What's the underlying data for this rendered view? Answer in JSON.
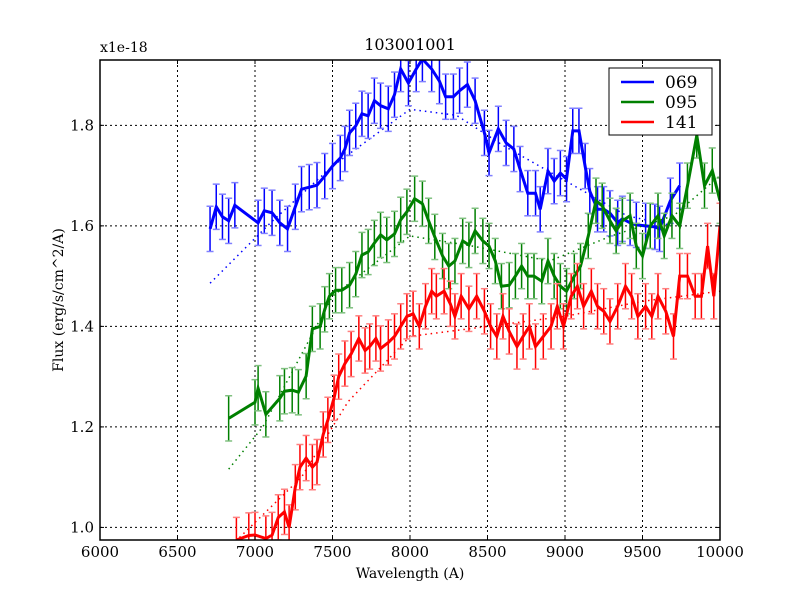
{
  "chart_data": {
    "type": "line",
    "title": "103001001",
    "xlabel": "Wavelength (A)",
    "ylabel": "Flux (erg/s/cm^2/A)",
    "y_offset_label": "x1e-18",
    "xlim": [
      6000,
      10000
    ],
    "ylim": [
      0.975,
      1.93
    ],
    "x_ticks": [
      "6000",
      "6500",
      "7000",
      "7500",
      "8000",
      "8500",
      "9000",
      "9500",
      "10000"
    ],
    "y_ticks": [
      "1.0",
      "1.2",
      "1.4",
      "1.6",
      "1.8"
    ],
    "grid": true,
    "legend_position": "upper right",
    "error_bars": true,
    "series": [
      {
        "name": "069",
        "color": "#0000ff",
        "x": [
          6710,
          6750,
          6790,
          6830,
          6870,
          7020,
          7060,
          7110,
          7160,
          7210,
          7260,
          7300,
          7350,
          7400,
          7450,
          7500,
          7550,
          7580,
          7610,
          7650,
          7690,
          7730,
          7770,
          7810,
          7860,
          7900,
          7940,
          7990,
          8040,
          8080,
          8140,
          8190,
          8230,
          8280,
          8320,
          8370,
          8420,
          8480,
          8510,
          8570,
          8620,
          8670,
          8710,
          8760,
          8810,
          8840,
          8890,
          8930,
          8970,
          9010,
          9050,
          9090,
          9130,
          9160,
          9210,
          9250,
          9290,
          9340,
          9370,
          9420,
          9460,
          9520,
          9580,
          9610,
          9680,
          9740
        ],
        "values": [
          1.594,
          1.638,
          1.618,
          1.61,
          1.641,
          1.606,
          1.63,
          1.626,
          1.606,
          1.594,
          1.638,
          1.673,
          1.677,
          1.681,
          1.699,
          1.719,
          1.735,
          1.753,
          1.785,
          1.799,
          1.823,
          1.819,
          1.849,
          1.839,
          1.833,
          1.861,
          1.912,
          1.884,
          1.912,
          1.932,
          1.912,
          1.888,
          1.857,
          1.857,
          1.869,
          1.881,
          1.849,
          1.785,
          1.745,
          1.793,
          1.765,
          1.753,
          1.713,
          1.665,
          1.665,
          1.633,
          1.709,
          1.689,
          1.705,
          1.693,
          1.789,
          1.789,
          1.719,
          1.669,
          1.633,
          1.633,
          1.625,
          1.606,
          1.614,
          1.606,
          1.602,
          1.6,
          1.598,
          1.594,
          1.65,
          1.68
        ],
        "model_trend": [
          [
            6710,
            1.486
          ],
          [
            7100,
            1.606
          ],
          [
            7500,
            1.719
          ],
          [
            8000,
            1.832
          ],
          [
            8300,
            1.82
          ],
          [
            8600,
            1.76
          ],
          [
            9000,
            1.69
          ],
          [
            9400,
            1.62
          ],
          [
            9700,
            1.6
          ]
        ]
      },
      {
        "name": "095",
        "color": "#008000",
        "x": [
          6830,
          7000,
          7020,
          7070,
          7160,
          7190,
          7240,
          7280,
          7330,
          7370,
          7420,
          7450,
          7480,
          7520,
          7560,
          7610,
          7650,
          7690,
          7730,
          7770,
          7810,
          7850,
          7900,
          7940,
          7980,
          8030,
          8080,
          8120,
          8160,
          8210,
          8250,
          8290,
          8340,
          8380,
          8420,
          8470,
          8510,
          8550,
          8590,
          8640,
          8680,
          8720,
          8760,
          8800,
          8850,
          8890,
          8930,
          8970,
          9010,
          9060,
          9100,
          9150,
          9200,
          9240,
          9290,
          9330,
          9370,
          9420,
          9460,
          9500,
          9550,
          9600,
          9640,
          9690,
          9740,
          9790,
          9850,
          9900,
          9950,
          10000
        ],
        "values": [
          1.217,
          1.249,
          1.277,
          1.225,
          1.257,
          1.271,
          1.273,
          1.269,
          1.301,
          1.395,
          1.4,
          1.434,
          1.46,
          1.472,
          1.472,
          1.482,
          1.504,
          1.542,
          1.548,
          1.566,
          1.582,
          1.572,
          1.584,
          1.612,
          1.628,
          1.654,
          1.644,
          1.61,
          1.578,
          1.54,
          1.52,
          1.53,
          1.57,
          1.562,
          1.59,
          1.57,
          1.56,
          1.53,
          1.48,
          1.482,
          1.5,
          1.52,
          1.5,
          1.5,
          1.49,
          1.53,
          1.5,
          1.48,
          1.47,
          1.5,
          1.52,
          1.58,
          1.65,
          1.64,
          1.61,
          1.59,
          1.61,
          1.62,
          1.56,
          1.54,
          1.6,
          1.62,
          1.58,
          1.62,
          1.6,
          1.68,
          1.78,
          1.68,
          1.71,
          1.65
        ],
        "model_trend": [
          [
            6830,
            1.116
          ],
          [
            7050,
            1.2
          ],
          [
            7500,
            1.46
          ],
          [
            8000,
            1.58
          ],
          [
            8400,
            1.56
          ],
          [
            8900,
            1.53
          ],
          [
            9300,
            1.58
          ],
          [
            9700,
            1.62
          ],
          [
            10000,
            1.7
          ]
        ]
      },
      {
        "name": "141",
        "color": "#ff0000",
        "x": [
          6880,
          6960,
          7000,
          7070,
          7110,
          7150,
          7190,
          7220,
          7260,
          7290,
          7330,
          7370,
          7400,
          7440,
          7470,
          7510,
          7540,
          7580,
          7620,
          7670,
          7710,
          7740,
          7780,
          7810,
          7860,
          7900,
          7940,
          7980,
          8020,
          8060,
          8100,
          8140,
          8170,
          8220,
          8260,
          8290,
          8330,
          8380,
          8430,
          8480,
          8520,
          8560,
          8600,
          8640,
          8690,
          8730,
          8770,
          8810,
          8860,
          8910,
          8950,
          8990,
          9040,
          9080,
          9120,
          9170,
          9210,
          9250,
          9290,
          9340,
          9390,
          9430,
          9470,
          9520,
          9560,
          9600,
          9650,
          9700,
          9740,
          9790,
          9840,
          9880,
          9920,
          9960,
          10000
        ],
        "values": [
          0.975,
          0.984,
          0.985,
          0.978,
          0.985,
          1.02,
          1.031,
          1.0,
          1.08,
          1.12,
          1.138,
          1.12,
          1.13,
          1.185,
          1.214,
          1.258,
          1.3,
          1.326,
          1.345,
          1.376,
          1.352,
          1.36,
          1.376,
          1.356,
          1.368,
          1.38,
          1.4,
          1.42,
          1.425,
          1.4,
          1.44,
          1.47,
          1.46,
          1.47,
          1.445,
          1.42,
          1.46,
          1.435,
          1.46,
          1.43,
          1.4,
          1.38,
          1.42,
          1.39,
          1.36,
          1.38,
          1.4,
          1.36,
          1.38,
          1.4,
          1.44,
          1.4,
          1.46,
          1.48,
          1.44,
          1.47,
          1.44,
          1.43,
          1.41,
          1.44,
          1.48,
          1.46,
          1.42,
          1.44,
          1.42,
          1.46,
          1.43,
          1.38,
          1.5,
          1.5,
          1.46,
          1.46,
          1.56,
          1.46,
          1.6
        ],
        "model_trend": [
          [
            6900,
            0.98
          ],
          [
            7300,
            1.1
          ],
          [
            7600,
            1.25
          ],
          [
            8000,
            1.38
          ],
          [
            8500,
            1.4
          ],
          [
            9000,
            1.42
          ],
          [
            9500,
            1.45
          ],
          [
            10000,
            1.47
          ]
        ]
      }
    ]
  },
  "legend": {
    "items": [
      {
        "label": "069",
        "color": "#0000ff"
      },
      {
        "label": "095",
        "color": "#008000"
      },
      {
        "label": "141",
        "color": "#ff0000"
      }
    ]
  }
}
